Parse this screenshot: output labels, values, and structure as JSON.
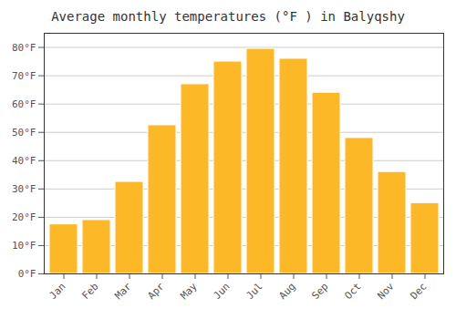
{
  "chart_data": {
    "type": "bar",
    "title": "Average monthly temperatures (°F ) in Balyqshy",
    "categories": [
      "Jan",
      "Feb",
      "Mar",
      "Apr",
      "May",
      "Jun",
      "Jul",
      "Aug",
      "Sep",
      "Oct",
      "Nov",
      "Dec"
    ],
    "values": [
      17.5,
      19.0,
      32.5,
      52.5,
      67.0,
      75.0,
      79.5,
      76.0,
      64.0,
      48.0,
      36.0,
      25.0
    ],
    "color": "#FDB827",
    "ylim": [
      0,
      85
    ],
    "yticks": [
      {
        "value": 0,
        "label": "0°F"
      },
      {
        "value": 10,
        "label": "10°F"
      },
      {
        "value": 20,
        "label": "20°F"
      },
      {
        "value": 30,
        "label": "30°F"
      },
      {
        "value": 40,
        "label": "40°F"
      },
      {
        "value": 50,
        "label": "50°F"
      },
      {
        "value": 60,
        "label": "60°F"
      },
      {
        "value": 70,
        "label": "70°F"
      },
      {
        "value": 80,
        "label": "80°F"
      }
    ],
    "grid": true
  }
}
